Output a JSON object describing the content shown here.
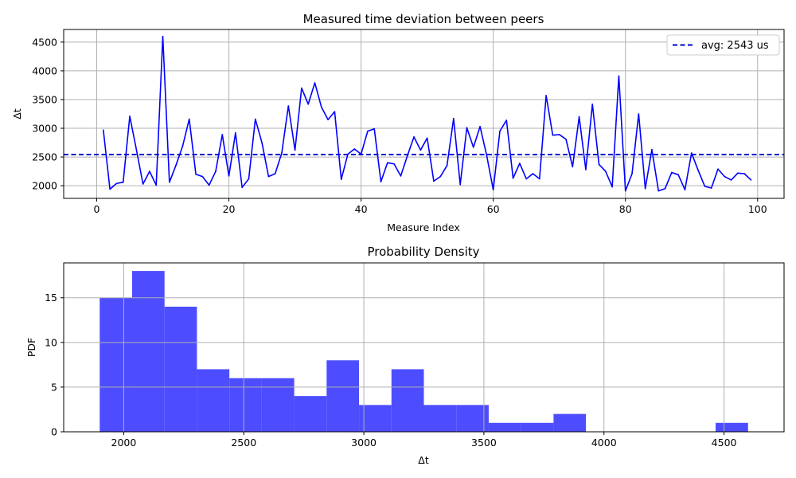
{
  "chart_data": [
    {
      "type": "line",
      "title": "Measured time deviation between peers",
      "xlabel": "Measure Index",
      "ylabel": "Δt",
      "xlim": [
        -5,
        104
      ],
      "ylim": [
        1780,
        4720
      ],
      "xticks": [
        0,
        20,
        40,
        60,
        80,
        100
      ],
      "yticks": [
        2000,
        2500,
        3000,
        3500,
        4000,
        4500
      ],
      "grid": true,
      "legend_position": "top-right",
      "colors": {
        "series": "#0000ff",
        "average": "#0000cd"
      },
      "series": [
        {
          "name": "",
          "x": [
            1,
            2,
            3,
            4,
            5,
            6,
            7,
            8,
            9,
            10,
            11,
            12,
            13,
            14,
            15,
            16,
            17,
            18,
            19,
            20,
            21,
            22,
            23,
            24,
            25,
            26,
            27,
            28,
            29,
            30,
            31,
            32,
            33,
            34,
            35,
            36,
            37,
            38,
            39,
            40,
            41,
            42,
            43,
            44,
            45,
            46,
            47,
            48,
            49,
            50,
            51,
            52,
            53,
            54,
            55,
            56,
            57,
            58,
            59,
            60,
            61,
            62,
            63,
            64,
            65,
            66,
            67,
            68,
            69,
            70,
            71,
            72,
            73,
            74,
            75,
            76,
            77,
            78,
            79,
            80,
            81,
            82,
            83,
            84,
            85,
            86,
            87,
            88,
            89,
            90,
            91,
            92,
            93,
            94,
            95,
            96,
            97,
            98,
            99
          ],
          "y": [
            2970,
            1940,
            2040,
            2060,
            3210,
            2630,
            2030,
            2250,
            2010,
            4600,
            2060,
            2360,
            2690,
            3160,
            2200,
            2160,
            2010,
            2250,
            2890,
            2170,
            2920,
            1970,
            2120,
            3160,
            2750,
            2160,
            2210,
            2570,
            3390,
            2620,
            3700,
            3420,
            3790,
            3370,
            3150,
            3290,
            2110,
            2550,
            2640,
            2550,
            2950,
            2990,
            2070,
            2400,
            2380,
            2170,
            2520,
            2850,
            2620,
            2830,
            2080,
            2160,
            2350,
            3170,
            2020,
            3010,
            2670,
            3030,
            2530,
            1930,
            2950,
            3140,
            2130,
            2390,
            2120,
            2210,
            2120,
            3570,
            2880,
            2890,
            2810,
            2330,
            3200,
            2280,
            3420,
            2370,
            2250,
            1980,
            3910,
            1910,
            2210,
            3250,
            1950,
            2630,
            1910,
            1950,
            2230,
            2190,
            1930,
            2570,
            2270,
            1990,
            1960,
            2290,
            2160,
            2100,
            2220,
            2210,
            2100
          ]
        },
        {
          "name": "avg: 2543 us",
          "style": "dashed",
          "constant": 2543
        }
      ]
    },
    {
      "type": "bar",
      "subtype": "histogram",
      "title": "Probability Density",
      "xlabel": "Δt",
      "ylabel": "PDF",
      "xlim": [
        1750,
        4750
      ],
      "ylim": [
        0,
        18.9
      ],
      "xticks": [
        2000,
        2500,
        3000,
        3500,
        4000,
        4500
      ],
      "yticks": [
        0,
        5,
        10,
        15
      ],
      "grid": true,
      "colors": {
        "bars": "#4d4dff"
      },
      "bin_start": 1900,
      "bin_width": 135,
      "values": [
        15,
        18,
        14,
        7,
        6,
        6,
        4,
        8,
        3,
        7,
        3,
        3,
        1,
        1,
        2,
        0,
        0,
        0,
        0,
        1
      ]
    }
  ]
}
